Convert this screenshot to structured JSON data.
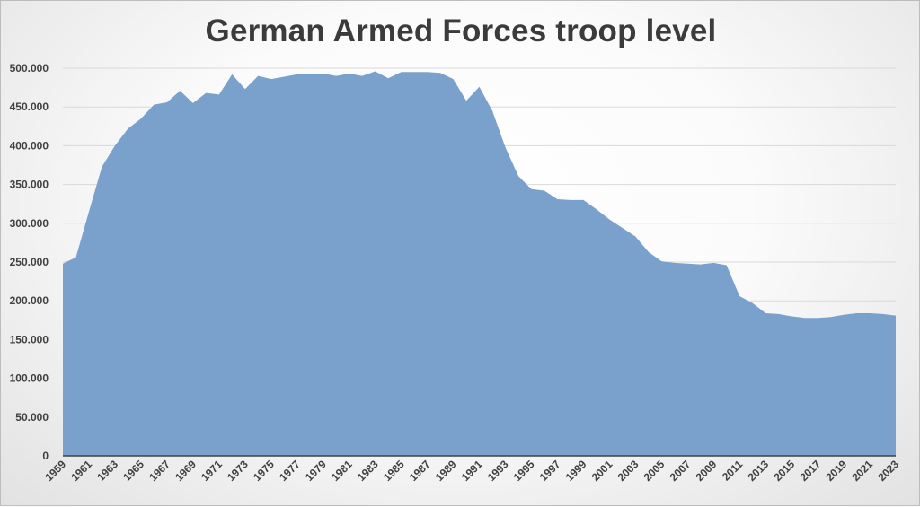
{
  "chart_data": {
    "type": "area",
    "title": "German Armed Forces troop level",
    "color": "#7aa0cc",
    "y_ticks": [
      "0",
      "50.000",
      "100.000",
      "150.000",
      "200.000",
      "250.000",
      "300.000",
      "350.000",
      "400.000",
      "450.000",
      "500.000"
    ],
    "ylim": [
      0,
      500000
    ],
    "grid": true,
    "x_tick_labels": [
      "1959",
      "1961",
      "1963",
      "1965",
      "1967",
      "1969",
      "1971",
      "1973",
      "1975",
      "1977",
      "1979",
      "1981",
      "1983",
      "1985",
      "1987",
      "1989",
      "1991",
      "1993",
      "1995",
      "1997",
      "1999",
      "2001",
      "2003",
      "2005",
      "2007",
      "2009",
      "2011",
      "2013",
      "2015",
      "2017",
      "2019",
      "2021",
      "2023"
    ],
    "x": [
      1959,
      1960,
      1961,
      1962,
      1963,
      1964,
      1965,
      1966,
      1967,
      1968,
      1969,
      1970,
      1971,
      1972,
      1973,
      1974,
      1975,
      1976,
      1977,
      1978,
      1979,
      1980,
      1981,
      1982,
      1983,
      1984,
      1985,
      1986,
      1987,
      1988,
      1989,
      1990,
      1991,
      1992,
      1993,
      1994,
      1995,
      1996,
      1997,
      1998,
      1999,
      2000,
      2001,
      2002,
      2003,
      2004,
      2005,
      2006,
      2007,
      2008,
      2009,
      2010,
      2011,
      2012,
      2013,
      2014,
      2015,
      2016,
      2017,
      2018,
      2019,
      2020,
      2021,
      2022,
      2023
    ],
    "values": [
      248000,
      256000,
      315000,
      373000,
      400000,
      422000,
      435000,
      453000,
      456000,
      471000,
      455000,
      468000,
      466000,
      492000,
      473000,
      490000,
      486000,
      489000,
      492000,
      492000,
      493000,
      490000,
      493000,
      490000,
      496000,
      487000,
      495000,
      495000,
      495000,
      494000,
      486000,
      458000,
      476000,
      445000,
      398000,
      361000,
      344000,
      342000,
      331000,
      330000,
      330000,
      318000,
      305000,
      294000,
      283000,
      263000,
      251000,
      249000,
      248000,
      247000,
      249000,
      246000,
      206000,
      197000,
      184000,
      183000,
      180000,
      178000,
      178000,
      179000,
      182000,
      184000,
      184000,
      183000,
      181000
    ]
  }
}
